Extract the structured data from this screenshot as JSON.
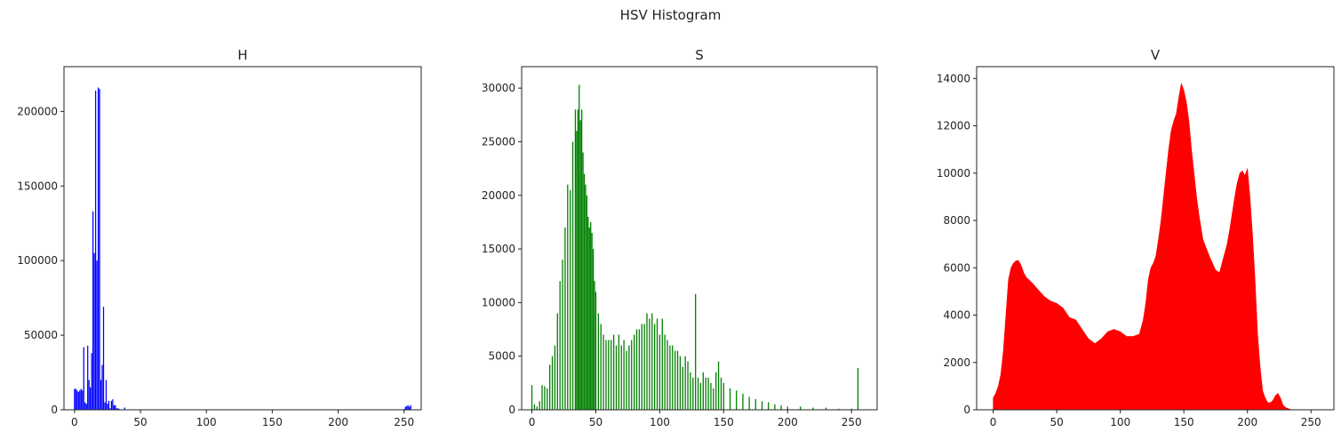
{
  "figure": {
    "suptitle": "HSV Histogram"
  },
  "chart_data": [
    {
      "type": "bar",
      "title": "H",
      "color": "#0000ff",
      "xlim": [
        -8,
        263
      ],
      "ylim": [
        0,
        230000
      ],
      "xticks": [
        0,
        50,
        100,
        150,
        200,
        250
      ],
      "yticks": [
        0,
        50000,
        100000,
        150000,
        200000
      ],
      "bins": [
        0,
        1,
        2,
        3,
        4,
        5,
        6,
        7,
        8,
        9,
        10,
        11,
        12,
        13,
        14,
        15,
        16,
        17,
        18,
        19,
        20,
        21,
        22,
        23,
        24,
        25,
        26,
        27,
        28,
        29,
        30,
        31,
        32,
        33,
        34,
        35,
        36,
        37,
        38,
        39,
        40,
        41,
        42,
        43,
        44,
        45,
        46,
        47,
        48,
        49,
        50,
        250,
        251,
        252,
        253,
        254,
        255
      ],
      "values": [
        14000,
        14000,
        13000,
        12000,
        13000,
        14000,
        13000,
        42000,
        5000,
        4000,
        43000,
        20000,
        15000,
        38000,
        133000,
        105000,
        214000,
        100000,
        216000,
        215000,
        20000,
        30000,
        69000,
        5000,
        20000,
        4000,
        6000,
        1000,
        6000,
        7000,
        3000,
        3000,
        1000,
        1000,
        500,
        300,
        200,
        300,
        1500,
        200,
        300,
        100,
        100,
        100,
        100,
        100,
        100,
        100,
        100,
        100,
        100,
        500,
        2000,
        2500,
        3000,
        2000,
        3000
      ]
    },
    {
      "type": "bar",
      "title": "S",
      "color": "#008000",
      "xlim": [
        -8,
        270
      ],
      "ylim": [
        0,
        32000
      ],
      "xticks": [
        0,
        50,
        100,
        150,
        200,
        250
      ],
      "yticks": [
        0,
        5000,
        10000,
        15000,
        20000,
        25000,
        30000
      ],
      "x": [
        0,
        2,
        4,
        6,
        8,
        10,
        12,
        14,
        16,
        18,
        20,
        22,
        24,
        26,
        28,
        30,
        32,
        34,
        35,
        36,
        37,
        38,
        39,
        40,
        41,
        42,
        43,
        44,
        45,
        46,
        47,
        48,
        49,
        50,
        52,
        54,
        56,
        58,
        60,
        62,
        64,
        66,
        68,
        70,
        72,
        74,
        76,
        78,
        80,
        82,
        84,
        86,
        88,
        90,
        92,
        94,
        96,
        98,
        100,
        102,
        104,
        106,
        108,
        110,
        112,
        114,
        116,
        118,
        120,
        122,
        124,
        126,
        128,
        130,
        132,
        134,
        136,
        138,
        140,
        142,
        144,
        146,
        148,
        150,
        155,
        160,
        165,
        170,
        175,
        180,
        185,
        190,
        195,
        200,
        210,
        220,
        230,
        240,
        250,
        255
      ],
      "values": [
        2300,
        500,
        300,
        800,
        2300,
        2200,
        2000,
        4200,
        5000,
        6000,
        9000,
        12000,
        14000,
        17000,
        21000,
        20500,
        25000,
        28000,
        26000,
        28000,
        30300,
        27000,
        28000,
        24000,
        22000,
        21000,
        20000,
        18000,
        17000,
        17500,
        16500,
        15000,
        12000,
        11000,
        9000,
        8000,
        7000,
        6500,
        6500,
        6500,
        7000,
        6000,
        7000,
        6000,
        6500,
        5500,
        6000,
        6500,
        7000,
        7500,
        7500,
        8000,
        8000,
        9000,
        8500,
        9000,
        8000,
        8500,
        7000,
        8500,
        7000,
        6500,
        6000,
        6000,
        5500,
        5500,
        5000,
        4000,
        5000,
        4500,
        3500,
        3000,
        10800,
        3000,
        2500,
        3500,
        3000,
        3000,
        2500,
        2000,
        3500,
        4500,
        3000,
        2500,
        2000,
        1800,
        1500,
        1200,
        1000,
        800,
        700,
        500,
        400,
        300,
        300,
        200,
        200,
        100,
        100,
        3900
      ]
    },
    {
      "type": "area",
      "title": "V",
      "color": "#ff0000",
      "xlim": [
        -13,
        268
      ],
      "ylim": [
        0,
        14500
      ],
      "xticks": [
        0,
        50,
        100,
        150,
        200,
        250
      ],
      "yticks": [
        0,
        2000,
        4000,
        6000,
        8000,
        10000,
        12000,
        14000
      ],
      "x": [
        0,
        2,
        4,
        6,
        8,
        10,
        12,
        14,
        16,
        18,
        20,
        22,
        24,
        26,
        28,
        30,
        35,
        40,
        45,
        50,
        55,
        60,
        65,
        70,
        75,
        80,
        85,
        90,
        95,
        100,
        105,
        110,
        115,
        118,
        120,
        122,
        124,
        126,
        128,
        130,
        132,
        134,
        136,
        138,
        140,
        142,
        144,
        146,
        148,
        150,
        152,
        154,
        156,
        158,
        160,
        162,
        165,
        170,
        175,
        178,
        180,
        182,
        184,
        186,
        188,
        190,
        192,
        194,
        196,
        198,
        200,
        202,
        204,
        206,
        208,
        210,
        212,
        214,
        216,
        218,
        220,
        222,
        224,
        226,
        228,
        230,
        232,
        235
      ],
      "values": [
        500,
        700,
        1000,
        1500,
        2500,
        4000,
        5500,
        6000,
        6200,
        6300,
        6300,
        6100,
        5800,
        5600,
        5500,
        5400,
        5100,
        4800,
        4600,
        4500,
        4300,
        3900,
        3800,
        3400,
        3000,
        2800,
        3000,
        3300,
        3400,
        3300,
        3100,
        3100,
        3200,
        3800,
        4500,
        5500,
        6000,
        6200,
        6500,
        7200,
        8000,
        9000,
        10000,
        11000,
        11800,
        12200,
        12500,
        13200,
        13800,
        13500,
        13000,
        12200,
        11000,
        10000,
        9000,
        8200,
        7200,
        6500,
        5900,
        5800,
        6200,
        6600,
        7000,
        7600,
        8300,
        9000,
        9600,
        10000,
        10100,
        9900,
        10200,
        9000,
        7400,
        5500,
        3200,
        1800,
        800,
        500,
        300,
        300,
        400,
        600,
        700,
        500,
        200,
        100,
        50,
        0
      ]
    }
  ]
}
